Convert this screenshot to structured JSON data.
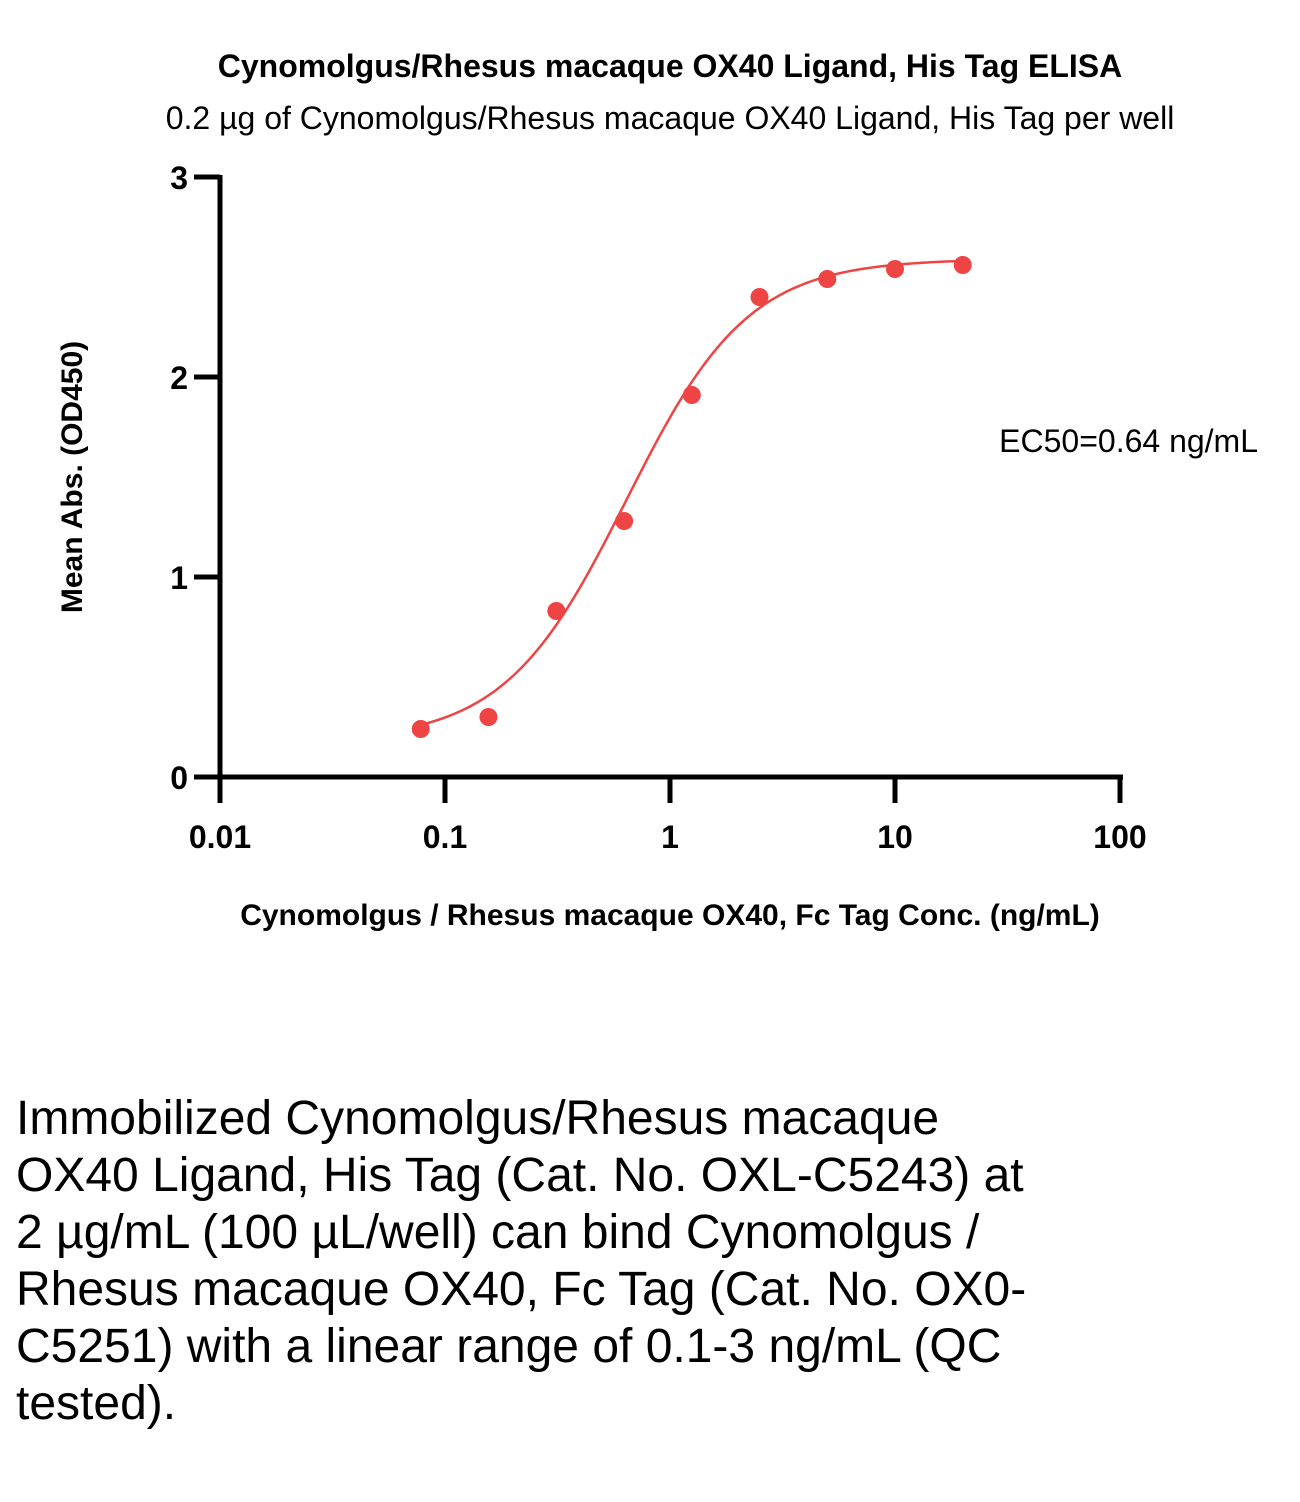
{
  "chart_data": {
    "type": "scatter",
    "title": "Cynomolgus/Rhesus macaque OX40 Ligand, His Tag  ELISA",
    "subtitle": "0.2 µg of Cynomolgus/Rhesus macaque OX40 Ligand, His Tag  per well",
    "xlabel": "Cynomolgus / Rhesus macaque OX40, Fc Tag Conc. (ng/mL)",
    "ylabel": "Mean Abs. (OD450)",
    "x_scale": "log",
    "xlim": [
      0.01,
      100
    ],
    "ylim": [
      0,
      3
    ],
    "x_ticks": [
      "0.01",
      "0.1",
      "1",
      "10",
      "100"
    ],
    "y_ticks": [
      "0",
      "1",
      "2",
      "3"
    ],
    "grid": false,
    "color": "#ee4444",
    "series": [
      {
        "x": [
          0.078,
          0.156,
          0.3125,
          0.625,
          1.25,
          2.5,
          5,
          10,
          20
        ],
        "y": [
          0.24,
          0.3,
          0.83,
          1.28,
          1.91,
          2.4,
          2.49,
          2.54,
          2.56
        ]
      }
    ],
    "fit_curve": {
      "model": "4PL",
      "bottom": 0.18,
      "top": 2.59,
      "ec50": 0.64,
      "hill": 1.6
    },
    "annotation": "EC50=0.64 ng/mL"
  },
  "caption": "Immobilized Cynomolgus/Rhesus macaque OX40 Ligand, His Tag (Cat. No. OXL-C5243) at 2 µg/mL (100 µL/well) can bind Cynomolgus / Rhesus macaque OX40, Fc Tag (Cat. No. OX0-C5251) with a linear range of 0.1-3 ng/mL (QC tested)."
}
